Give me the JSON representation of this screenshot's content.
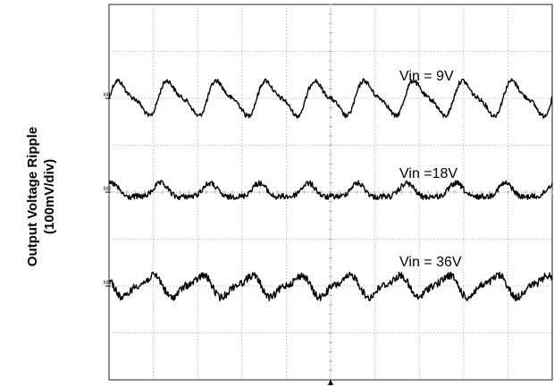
{
  "chart_data": {
    "type": "line",
    "ylabel_line1": "Output Voltage Ripple",
    "ylabel_line2": "(100mV/div)",
    "grid": true,
    "divisions": {
      "x": 10,
      "y": 8
    },
    "series": [
      {
        "name": "Vin = 9V",
        "marker": "M1",
        "offset_div": 6.0,
        "amplitude_div": 0.32,
        "noise_div": 0.05,
        "cycles": 9,
        "color": "#000000"
      },
      {
        "name": "Vin =18V",
        "marker": "M2",
        "offset_div": 4.0,
        "amplitude_div": 0.14,
        "noise_div": 0.06,
        "cycles": 9,
        "color": "#000000"
      },
      {
        "name": "Vin = 36V",
        "marker": "M3",
        "offset_div": 2.0,
        "amplitude_div": 0.2,
        "noise_div": 0.08,
        "cycles": 9,
        "color": "#000000"
      }
    ]
  }
}
